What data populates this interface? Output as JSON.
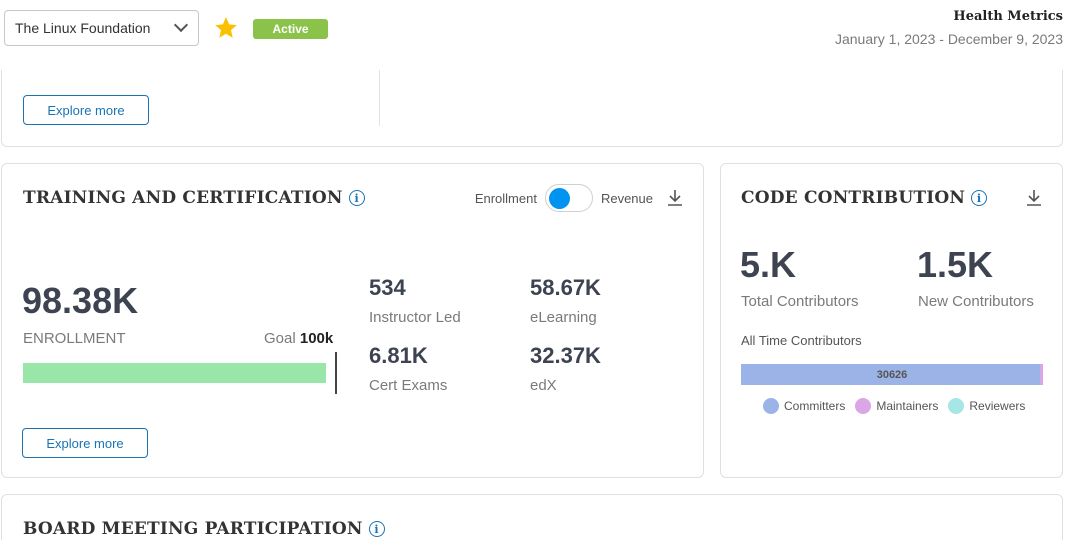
{
  "header": {
    "org_select_value": "The Linux Foundation",
    "status_badge": "Active",
    "health_title": "Health Metrics",
    "date_range": "January 1, 2023 - December 9, 2023",
    "colors": {
      "star": "#f9c200",
      "badge": "#8bc34a",
      "accent": "#1a73b5"
    }
  },
  "top_card": {
    "explore_label": "Explore more"
  },
  "training": {
    "title": "TRAINING AND CERTIFICATION",
    "toggle_left": "Enrollment",
    "toggle_right": "Revenue",
    "main_value": "98.38K",
    "main_label": "ENROLLMENT",
    "goal_label": "Goal",
    "goal_value": "100k",
    "progress_fraction": 0.9838,
    "stats": [
      {
        "value": "534",
        "label": "Instructor Led"
      },
      {
        "value": "58.67K",
        "label": "eLearning"
      },
      {
        "value": "6.81K",
        "label": "Cert Exams"
      },
      {
        "value": "32.37K",
        "label": "edX"
      }
    ],
    "explore_label": "Explore more"
  },
  "code": {
    "title": "CODE CONTRIBUTION",
    "total_value": "5.K",
    "total_label": "Total Contributors",
    "new_value": "1.5K",
    "new_label": "New Contributors",
    "all_time_label": "All Time Contributors",
    "bar_value": "30626",
    "legend": [
      {
        "name": "Committers",
        "color": "#9cb3e7"
      },
      {
        "name": "Maintainers",
        "color": "#dba6e8"
      },
      {
        "name": "Reviewers",
        "color": "#a6e6e6"
      }
    ]
  },
  "board": {
    "title": "BOARD MEETING PARTICIPATION"
  }
}
